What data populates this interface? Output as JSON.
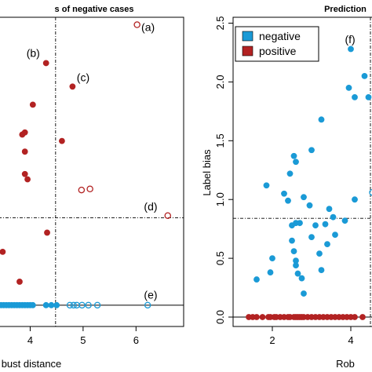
{
  "chart_data": [
    {
      "type": "scatter",
      "title": "s of negative cases",
      "xlabel": "bust distance",
      "ylabel": "",
      "xlim": [
        3.4,
        6.9
      ],
      "ylim": [
        -0.2,
        2.7
      ],
      "xticks": [
        4,
        5,
        6
      ],
      "yticks": [],
      "grid": false,
      "thresholds": {
        "x": 4.48,
        "y": 0.82
      },
      "series": [
        {
          "color": "#b22222",
          "marker": "filled",
          "points": [
            [
              4.3,
              2.27
            ],
            [
              4.8,
              2.05
            ],
            [
              4.05,
              1.88
            ],
            [
              3.9,
              1.62
            ],
            [
              3.85,
              1.6
            ],
            [
              4.6,
              1.54
            ],
            [
              3.9,
              1.44
            ],
            [
              3.9,
              1.23
            ],
            [
              3.95,
              1.18
            ],
            [
              4.32,
              0.68
            ],
            [
              3.48,
              0.5
            ],
            [
              3.8,
              0.22
            ]
          ]
        },
        {
          "color": "#b22222",
          "marker": "open",
          "points": [
            [
              6.02,
              2.63
            ],
            [
              4.97,
              1.08
            ],
            [
              5.13,
              1.09
            ],
            [
              6.6,
              0.84
            ]
          ]
        },
        {
          "color": "#1a9ad6",
          "marker": "filled",
          "points": [
            [
              3.45,
              0.0
            ],
            [
              3.5,
              0.0
            ],
            [
              3.55,
              0.0
            ],
            [
              3.6,
              0.0
            ],
            [
              3.65,
              0.0
            ],
            [
              3.7,
              0.0
            ],
            [
              3.75,
              0.0
            ],
            [
              3.8,
              0.0
            ],
            [
              3.85,
              0.0
            ],
            [
              3.9,
              0.0
            ],
            [
              3.95,
              0.0
            ],
            [
              4.0,
              0.0
            ],
            [
              4.05,
              0.0
            ],
            [
              4.3,
              0.0
            ],
            [
              4.4,
              0.0
            ],
            [
              4.5,
              0.0
            ]
          ]
        },
        {
          "color": "#1a9ad6",
          "marker": "open",
          "points": [
            [
              4.75,
              0.0
            ],
            [
              4.82,
              0.0
            ],
            [
              4.88,
              0.0
            ],
            [
              4.98,
              0.0
            ],
            [
              5.1,
              0.0
            ],
            [
              5.27,
              0.0
            ],
            [
              6.22,
              0.0
            ]
          ]
        }
      ],
      "annotations": [
        {
          "text": "(a)",
          "x": 6.1,
          "y": 2.57
        },
        {
          "text": "(b)",
          "x": 3.93,
          "y": 2.33
        },
        {
          "text": "(c)",
          "x": 4.88,
          "y": 2.1
        },
        {
          "text": "(d)",
          "x": 6.15,
          "y": 0.89
        },
        {
          "text": "(e)",
          "x": 6.15,
          "y": 0.06
        }
      ]
    },
    {
      "type": "scatter",
      "title": "Prediction",
      "xlabel": "Rob",
      "ylabel": "Label bias",
      "xlim": [
        1.0,
        4.6
      ],
      "ylim": [
        -0.08,
        2.55
      ],
      "xticks": [
        2,
        4
      ],
      "yticks": [
        0.0,
        0.5,
        1.0,
        1.5,
        2.0,
        2.5
      ],
      "ytick_labels": [
        "0.0",
        "0.5",
        "1.0",
        "1.5",
        "2.0",
        "2.5"
      ],
      "grid": false,
      "thresholds": {
        "x": 4.5,
        "y": 0.84
      },
      "legend": {
        "placement": "top-left",
        "entries": [
          {
            "label": "negative",
            "color": "#1a9ad6"
          },
          {
            "label": "positive",
            "color": "#b22222"
          }
        ]
      },
      "series": [
        {
          "name": "negative",
          "color": "#1a9ad6",
          "marker": "filled",
          "points": [
            [
              4.0,
              2.28
            ],
            [
              4.35,
              2.05
            ],
            [
              4.45,
              1.87
            ],
            [
              3.95,
              1.95
            ],
            [
              4.1,
              1.87
            ],
            [
              3.25,
              1.68
            ],
            [
              2.55,
              1.37
            ],
            [
              2.6,
              1.32
            ],
            [
              3.0,
              1.42
            ],
            [
              2.45,
              1.22
            ],
            [
              1.85,
              1.12
            ],
            [
              2.3,
              1.05
            ],
            [
              2.4,
              0.99
            ],
            [
              2.8,
              1.02
            ],
            [
              2.95,
              0.95
            ],
            [
              3.45,
              0.92
            ],
            [
              3.55,
              0.85
            ],
            [
              3.85,
              0.82
            ],
            [
              2.6,
              0.8
            ],
            [
              2.5,
              0.78
            ],
            [
              2.7,
              0.8
            ],
            [
              3.1,
              0.78
            ],
            [
              3.35,
              0.79
            ],
            [
              3.6,
              0.7
            ],
            [
              2.5,
              0.65
            ],
            [
              3.0,
              0.68
            ],
            [
              3.4,
              0.62
            ],
            [
              2.55,
              0.56
            ],
            [
              3.2,
              0.54
            ],
            [
              2.6,
              0.48
            ],
            [
              2.0,
              0.5
            ],
            [
              2.65,
              0.37
            ],
            [
              3.25,
              0.4
            ],
            [
              2.75,
              0.33
            ],
            [
              2.6,
              0.44
            ],
            [
              1.95,
              0.38
            ],
            [
              1.6,
              0.32
            ],
            [
              2.8,
              0.2
            ],
            [
              4.1,
              1.0
            ]
          ]
        },
        {
          "name": "negative-open",
          "color": "#1a9ad6",
          "marker": "open",
          "points": [
            [
              4.55,
              1.06
            ]
          ]
        },
        {
          "name": "positive",
          "color": "#b22222",
          "marker": "filled",
          "points": [
            [
              1.4,
              0.0
            ],
            [
              1.5,
              0.0
            ],
            [
              1.6,
              0.0
            ],
            [
              1.75,
              0.0
            ],
            [
              1.9,
              0.0
            ],
            [
              1.95,
              0.0
            ],
            [
              2.05,
              0.0
            ],
            [
              2.1,
              0.0
            ],
            [
              2.2,
              0.0
            ],
            [
              2.3,
              0.0
            ],
            [
              2.4,
              0.0
            ],
            [
              2.45,
              0.0
            ],
            [
              2.55,
              0.0
            ],
            [
              2.6,
              0.0
            ],
            [
              2.65,
              0.0
            ],
            [
              2.7,
              0.0
            ],
            [
              2.75,
              0.0
            ],
            [
              2.8,
              0.0
            ],
            [
              2.9,
              0.0
            ],
            [
              3.0,
              0.0
            ],
            [
              3.1,
              0.0
            ],
            [
              3.2,
              0.0
            ],
            [
              3.3,
              0.0
            ],
            [
              3.4,
              0.0
            ],
            [
              3.5,
              0.0
            ],
            [
              3.6,
              0.0
            ],
            [
              3.7,
              0.0
            ],
            [
              3.8,
              0.0
            ],
            [
              3.9,
              0.0
            ],
            [
              4.0,
              0.0
            ],
            [
              4.1,
              0.0
            ],
            [
              4.3,
              0.0
            ]
          ]
        }
      ],
      "annotations": [
        {
          "text": "(f)",
          "x": 3.85,
          "y": 2.33
        }
      ]
    }
  ]
}
